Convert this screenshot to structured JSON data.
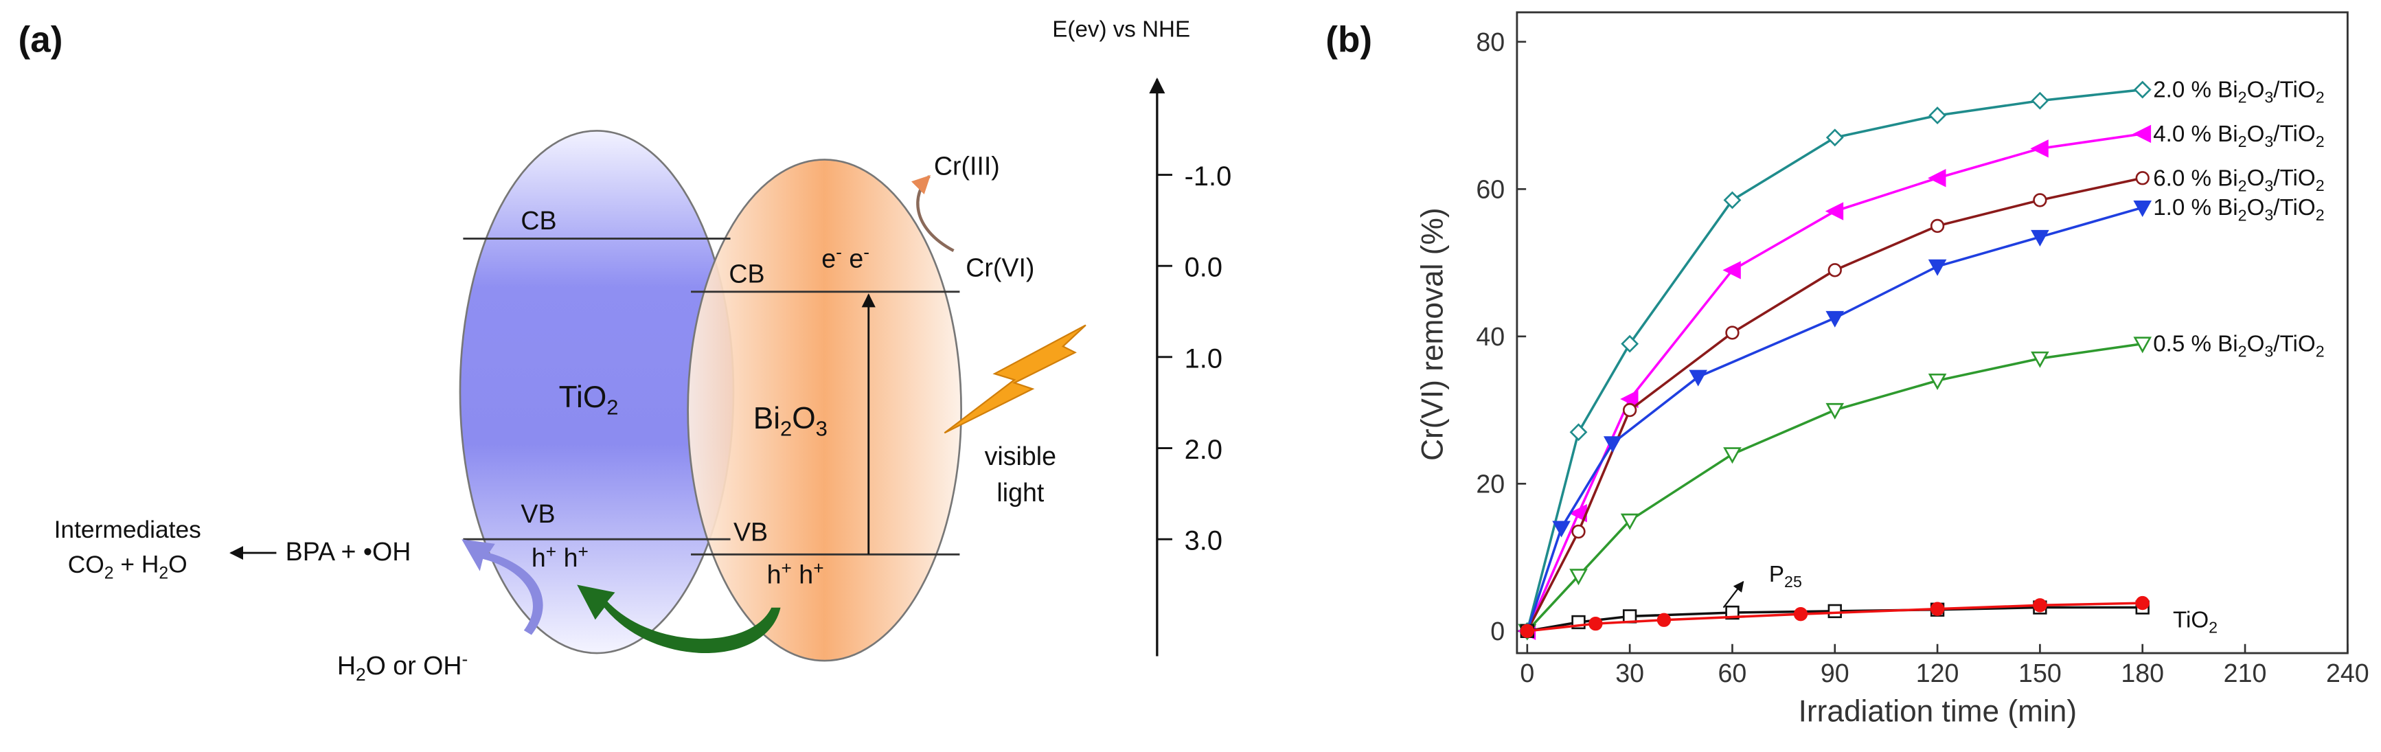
{
  "panel_a": {
    "panel_label": "(a)",
    "energy_axis_label": "E(ev) vs NHE",
    "energy_ticks": [
      {
        "value": -1,
        "label": "-1.0"
      },
      {
        "value": 0,
        "label": "0.0"
      },
      {
        "value": 1,
        "label": "1.0"
      },
      {
        "value": 2,
        "label": "2.0"
      },
      {
        "value": 3,
        "label": "3.0"
      }
    ],
    "tio2": {
      "name": "TiO2",
      "cb": "CB",
      "vb": "VB",
      "holes": "h+  h+"
    },
    "bi2o3": {
      "name": "Bi2O3",
      "cb": "CB",
      "vb": "VB",
      "electrons": "e-  e-",
      "holes": "h+  h+"
    },
    "cr_product": "Cr(III)",
    "cr_reactant": "Cr(VI)",
    "light": [
      "visible",
      "light"
    ],
    "products": [
      "Intermediates",
      "CO2 + H2O"
    ],
    "oxidant": "BPA + •OH",
    "source": "H2O or OH-"
  },
  "chart_data": {
    "type": "line",
    "panel_label": "(b)",
    "x_label": "Irradiation time (min)",
    "y_label": "Cr(VI) removal (%)",
    "xlim": [
      -3,
      240
    ],
    "ylim": [
      -3,
      84
    ],
    "xticks": [
      0,
      30,
      60,
      90,
      120,
      150,
      180,
      210,
      240
    ],
    "yticks": [
      0,
      20,
      40,
      60,
      80
    ],
    "series": [
      {
        "name": "2.0 % Bi2O3/TiO2",
        "color": "#1f8c8c",
        "marker": "diamond-open",
        "x": [
          0,
          15,
          30,
          60,
          90,
          120,
          150,
          180
        ],
        "values": [
          0,
          27,
          39,
          58.5,
          67,
          70,
          72,
          73.5
        ]
      },
      {
        "name": "4.0 % Bi2O3/TiO2",
        "color": "#ff00ff",
        "marker": "triangle-left",
        "x": [
          0,
          15,
          30,
          60,
          90,
          120,
          150,
          180
        ],
        "values": [
          0,
          16,
          31.5,
          49,
          57,
          61.5,
          65.5,
          67.5
        ]
      },
      {
        "name": "6.0 % Bi2O3/TiO2",
        "color": "#8b1a1a",
        "marker": "circle-open",
        "x": [
          0,
          15,
          30,
          60,
          90,
          120,
          150,
          180
        ],
        "values": [
          0,
          13.5,
          30,
          40.5,
          49,
          55,
          58.5,
          61.5
        ]
      },
      {
        "name": "1.0 % Bi2O3/TiO2",
        "color": "#1f3fe0",
        "marker": "triangle-down",
        "x": [
          0,
          10,
          25,
          50,
          90,
          120,
          150,
          180
        ],
        "values": [
          0,
          14,
          25.5,
          34.5,
          42.5,
          49.5,
          53.5,
          57.5
        ]
      },
      {
        "name": "0.5 % Bi2O3/TiO2",
        "color": "#2e9a2e",
        "marker": "triangle-down-open",
        "x": [
          0,
          15,
          30,
          60,
          90,
          120,
          150,
          180
        ],
        "values": [
          0,
          7.5,
          15,
          24,
          30,
          34,
          37,
          39
        ]
      },
      {
        "name": "P25",
        "color": "#111111",
        "marker": "square-open",
        "x": [
          0,
          15,
          30,
          60,
          90,
          120,
          150,
          180
        ],
        "values": [
          0,
          1.2,
          2,
          2.5,
          2.7,
          2.9,
          3.2,
          3.2
        ]
      },
      {
        "name": "TiO2",
        "color": "#ee1111",
        "marker": "circle",
        "x": [
          0,
          20,
          40,
          80,
          120,
          150,
          180
        ],
        "values": [
          0,
          1,
          1.5,
          2.3,
          3,
          3.5,
          3.8
        ]
      }
    ]
  }
}
